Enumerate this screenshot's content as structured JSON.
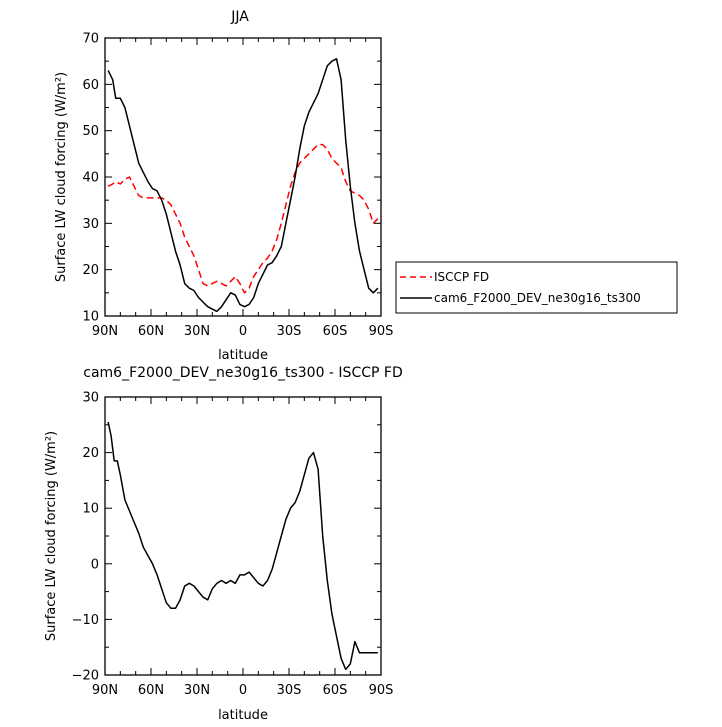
{
  "chart_data": [
    {
      "type": "line",
      "title": "JJA",
      "xlabel": "latitude",
      "ylabel": "Surface LW cloud forcing (W/m²)",
      "xlim": [
        90,
        -90
      ],
      "ylim": [
        10,
        70
      ],
      "x_ticks": [
        90,
        60,
        30,
        0,
        -30,
        -60,
        -90
      ],
      "x_tick_labels": [
        "90N",
        "60N",
        "30N",
        "0",
        "30S",
        "60S",
        "90S"
      ],
      "y_ticks": [
        10,
        20,
        30,
        40,
        50,
        60,
        70
      ],
      "y_tick_labels": [
        "10",
        "20",
        "30",
        "40",
        "50",
        "60",
        "70"
      ],
      "legend_position": "right",
      "series": [
        {
          "name": "ISCCP FD",
          "color": "#ff0000",
          "dash": "dashed",
          "x": [
            88,
            85,
            83,
            80,
            77,
            74,
            71,
            68,
            65,
            62,
            59,
            56,
            53,
            50,
            47,
            44,
            41,
            38,
            35,
            32,
            29,
            26,
            23,
            20,
            17,
            14,
            11,
            8,
            5,
            2,
            -1,
            -4,
            -7,
            -10,
            -13,
            -16,
            -19,
            -22,
            -25,
            -28,
            -31,
            -34,
            -37,
            -40,
            -43,
            -46,
            -49,
            -52,
            -55,
            -58,
            -61,
            -64,
            -67,
            -70,
            -73,
            -76,
            -79,
            -82,
            -85,
            -88
          ],
          "y": [
            38,
            38.5,
            39,
            38.5,
            39.5,
            40,
            38,
            36,
            35.5,
            35.5,
            35.5,
            35.5,
            35.5,
            35,
            34,
            32,
            30,
            27,
            25,
            23,
            20,
            17,
            16.5,
            17,
            17.5,
            17,
            16.5,
            17.5,
            18.5,
            17,
            15,
            16,
            18.5,
            20,
            21.5,
            22.5,
            24,
            26.5,
            30,
            34,
            38,
            41,
            43,
            44,
            45,
            46,
            47,
            47,
            46,
            44,
            43,
            42,
            39,
            37,
            36.5,
            36,
            35,
            33,
            30,
            31
          ]
        },
        {
          "name": "cam6_F2000_DEV_ne30g16_ts300",
          "color": "#000000",
          "dash": "solid",
          "x": [
            88,
            85,
            83,
            80,
            77,
            74,
            71,
            68,
            65,
            62,
            59,
            56,
            53,
            50,
            47,
            44,
            41,
            38,
            35,
            32,
            29,
            26,
            23,
            20,
            17,
            14,
            11,
            8,
            5,
            2,
            -1,
            -4,
            -7,
            -10,
            -13,
            -16,
            -19,
            -22,
            -25,
            -28,
            -31,
            -34,
            -37,
            -40,
            -43,
            -46,
            -49,
            -52,
            -55,
            -58,
            -61,
            -64,
            -67,
            -70,
            -73,
            -76,
            -79,
            -82,
            -85,
            -88
          ],
          "y": [
            63,
            61,
            57,
            57,
            55,
            51,
            47,
            43,
            41,
            39,
            37.5,
            37,
            35,
            32,
            28,
            24,
            21,
            17,
            16,
            15.5,
            14,
            13,
            12,
            11.5,
            11,
            12,
            13.5,
            15,
            14.5,
            12.5,
            12,
            12.5,
            14,
            17,
            19,
            21,
            21.5,
            23,
            25,
            30,
            35,
            40,
            46,
            51,
            54,
            56,
            58,
            61,
            64,
            65,
            65.5,
            61,
            48,
            38,
            30,
            24,
            20,
            16,
            15,
            16
          ]
        }
      ]
    },
    {
      "type": "line",
      "title": "cam6_F2000_DEV_ne30g16_ts300 - ISCCP FD",
      "xlabel": "latitude",
      "ylabel": "Surface LW cloud forcing (W/m²)",
      "xlim": [
        90,
        -90
      ],
      "ylim": [
        -20,
        30
      ],
      "x_ticks": [
        90,
        60,
        30,
        0,
        -30,
        -60,
        -90
      ],
      "x_tick_labels": [
        "90N",
        "60N",
        "30N",
        "0",
        "30S",
        "60S",
        "90S"
      ],
      "y_ticks": [
        -20,
        -10,
        0,
        10,
        20,
        30
      ],
      "y_tick_labels": [
        "−20",
        "−10",
        "0",
        "10",
        "20",
        "30"
      ],
      "series": [
        {
          "color": "#000000",
          "dash": "solid",
          "x": [
            88,
            86,
            84,
            82,
            80,
            77,
            74,
            71,
            68,
            65,
            62,
            59,
            56,
            53,
            50,
            47,
            44,
            41,
            38,
            35,
            32,
            29,
            26,
            23,
            20,
            17,
            14,
            11,
            8,
            5,
            2,
            -1,
            -4,
            -7,
            -10,
            -13,
            -16,
            -19,
            -22,
            -25,
            -28,
            -31,
            -34,
            -37,
            -40,
            -43,
            -46,
            -49,
            -52,
            -55,
            -58,
            -61,
            -64,
            -67,
            -70,
            -73,
            -76,
            -79,
            -82,
            -85,
            -88
          ],
          "y": [
            25.5,
            23,
            18.5,
            18.5,
            16,
            11.5,
            9.5,
            7.5,
            5.5,
            3,
            1.5,
            0,
            -2,
            -4.5,
            -7,
            -8,
            -8,
            -6.5,
            -4,
            -3.5,
            -4,
            -5,
            -6,
            -6.5,
            -4.5,
            -3.5,
            -3,
            -3.5,
            -3,
            -3.5,
            -2,
            -2,
            -1.5,
            -2.5,
            -3.5,
            -4,
            -3,
            -1,
            2,
            5,
            8,
            10,
            11,
            13,
            16,
            19,
            20,
            17,
            5,
            -3,
            -9,
            -13,
            -17,
            -19,
            -18,
            -14,
            -16,
            -16,
            -16,
            -16,
            -16
          ]
        }
      ]
    }
  ]
}
